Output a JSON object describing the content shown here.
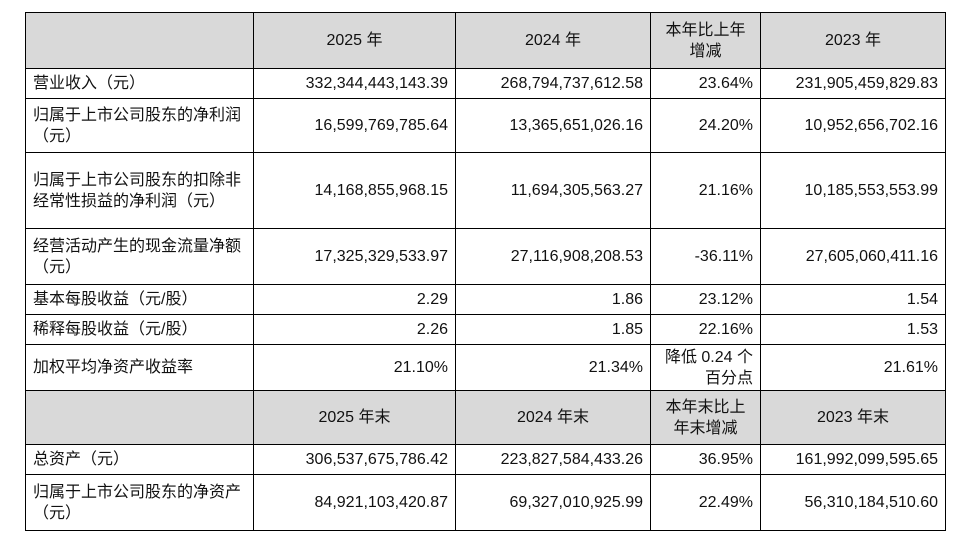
{
  "table": {
    "header1": [
      "2025 年",
      "2024 年",
      "本年比上年增减",
      "2023 年"
    ],
    "rows1": [
      [
        "营业收入（元）",
        "332,344,443,143.39",
        "268,794,737,612.58",
        "23.64%",
        "231,905,459,829.83"
      ],
      [
        "归属于上市公司股东的净利润（元）",
        "16,599,769,785.64",
        "13,365,651,026.16",
        "24.20%",
        "10,952,656,702.16"
      ],
      [
        "归属于上市公司股东的扣除非经常性损益的净利润（元）",
        "14,168,855,968.15",
        "11,694,305,563.27",
        "21.16%",
        "10,185,553,553.99"
      ],
      [
        "经营活动产生的现金流量净额（元）",
        "17,325,329,533.97",
        "27,116,908,208.53",
        "-36.11%",
        "27,605,060,411.16"
      ],
      [
        "基本每股收益（元/股）",
        "2.29",
        "1.86",
        "23.12%",
        "1.54"
      ],
      [
        "稀释每股收益（元/股）",
        "2.26",
        "1.85",
        "22.16%",
        "1.53"
      ],
      [
        "加权平均净资产收益率",
        "21.10%",
        "21.34%",
        "降低 0.24 个百分点",
        "21.61%"
      ]
    ],
    "header2": [
      "2025 年末",
      "2024 年末",
      "本年末比上年末增减",
      "2023 年末"
    ],
    "rows2": [
      [
        "总资产（元）",
        "306,537,675,786.42",
        "223,827,584,433.26",
        "36.95%",
        "161,992,099,595.65"
      ],
      [
        "归属于上市公司股东的净资产（元）",
        "84,921,103,420.87",
        "69,327,010,925.99",
        "22.49%",
        "56,310,184,510.60"
      ]
    ]
  }
}
